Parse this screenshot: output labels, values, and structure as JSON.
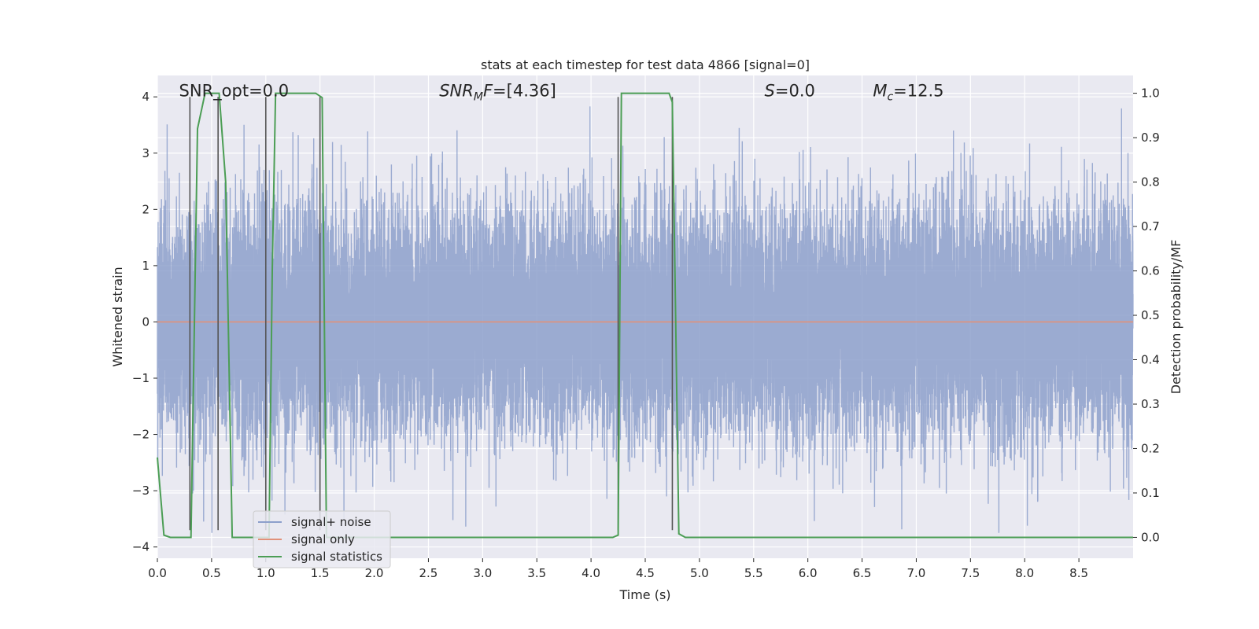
{
  "chart_data": {
    "type": "line",
    "title": "stats at each timestep for test data 4866 [signal=0]",
    "xlabel": "Time (s)",
    "ylabel": "Whitened strain",
    "ylabel_right": "Detection probability/MF",
    "xlim": [
      0.0,
      9.0
    ],
    "ylim": [
      -4.2,
      4.38
    ],
    "ylim_right": [
      -0.047,
      1.04
    ],
    "x_ticks": [
      0.0,
      0.5,
      1.0,
      1.5,
      2.0,
      2.5,
      3.0,
      3.5,
      4.0,
      4.5,
      5.0,
      5.5,
      6.0,
      6.5,
      7.0,
      7.5,
      8.0,
      8.5
    ],
    "x_tick_labels": [
      "0.0",
      "0.5",
      "1.0",
      "1.5",
      "2.0",
      "2.5",
      "3.0",
      "3.5",
      "4.0",
      "4.5",
      "5.0",
      "5.5",
      "6.0",
      "6.5",
      "7.0",
      "7.5",
      "8.0",
      "8.5"
    ],
    "y_ticks": [
      4,
      3,
      2,
      1,
      0,
      -1,
      -2,
      -3,
      -4
    ],
    "y_tick_labels": [
      "4",
      "3",
      "2",
      "1",
      "0",
      "−1",
      "−2",
      "−3",
      "−4"
    ],
    "y_right_ticks": [
      1.0,
      0.9,
      0.8,
      0.7,
      0.6,
      0.5,
      0.4,
      0.3,
      0.2,
      0.1,
      0.0
    ],
    "y_right_tick_labels": [
      "1.0",
      "0.9",
      "0.8",
      "0.7",
      "0.6",
      "0.5",
      "0.4",
      "0.3",
      "0.2",
      "0.1",
      "0.0"
    ],
    "grid": true,
    "legend_position": "bottom-left",
    "annotations": [
      {
        "text": "SNR_opt=0.0",
        "x": 0.2,
        "y": 4.05
      },
      {
        "text": "SNR_M F=[4.36]",
        "x": 2.6,
        "y": 4.05
      },
      {
        "text": "S=0.0",
        "x": 5.6,
        "y": 4.05
      },
      {
        "text": "M_c=12.5",
        "x": 6.6,
        "y": 4.05
      }
    ],
    "series": [
      {
        "name": "signal+ noise",
        "color": "#8da0cb",
        "axis": "left",
        "description": "whitened strain noise, approx. gaussian, spikes up to about +4 / -3.7",
        "sample_rate": 2048,
        "duration": 9.0,
        "approx_std": 1.0
      },
      {
        "name": "signal only",
        "color": "#e1917a",
        "axis": "left",
        "x": [
          0.0,
          9.0
        ],
        "y": [
          0.0,
          0.0
        ]
      },
      {
        "name": "signal statistics",
        "color": "#4c9e55",
        "axis": "right",
        "x": [
          0.0,
          0.06,
          0.12,
          0.3,
          0.31,
          0.37,
          0.44,
          0.57,
          0.63,
          0.69,
          0.75,
          1.0,
          1.03,
          1.06,
          1.09,
          1.12,
          1.46,
          1.52,
          1.56,
          1.62,
          4.2,
          4.25,
          4.28,
          4.72,
          4.75,
          4.78,
          4.81,
          4.87,
          9.0
        ],
        "y": [
          0.18,
          0.005,
          0.0,
          0.0,
          0.0,
          0.92,
          1.0,
          1.0,
          0.8,
          0.0,
          0.0,
          0.0,
          0.0,
          0.6,
          1.0,
          1.0,
          1.0,
          0.99,
          0.0,
          0.0,
          0.0,
          0.005,
          1.0,
          1.0,
          0.98,
          0.5,
          0.008,
          0.0,
          0.0
        ]
      }
    ],
    "vertical_markers": [
      {
        "x": 0.3,
        "y_top": 4.0,
        "y_bottom": -3.7
      },
      {
        "x": 0.56,
        "y_top": 4.0,
        "y_bottom": -3.7
      },
      {
        "x": 1.0,
        "y_top": 4.0,
        "y_bottom": -3.7
      },
      {
        "x": 1.5,
        "y_top": 4.0,
        "y_bottom": -3.7
      },
      {
        "x": 4.25,
        "y_top": 4.0,
        "y_bottom": -3.7
      },
      {
        "x": 4.75,
        "y_top": 4.0,
        "y_bottom": -3.7
      }
    ],
    "marker_color": "#555555"
  }
}
